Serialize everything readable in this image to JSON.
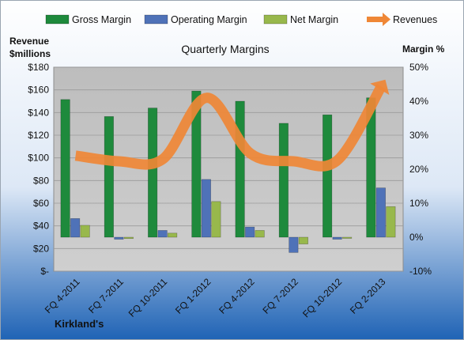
{
  "chart_data": {
    "type": "bar",
    "title": "Quarterly Margins",
    "company": "Kirkland's",
    "categories": [
      "FQ 4-2011",
      "FQ 7-2011",
      "FQ 10-2011",
      "FQ 1-2012",
      "FQ 4-2012",
      "FQ 7-2012",
      "FQ 10-2012",
      "FQ 2-2013"
    ],
    "left_axis": {
      "label_line1": "Revenue",
      "label_line2": "$millions",
      "ylim": [
        0,
        180
      ],
      "ticks": [
        0,
        20,
        40,
        60,
        80,
        100,
        120,
        140,
        160,
        180
      ],
      "tick_labels": [
        "$-",
        "$20",
        "$40",
        "$60",
        "$80",
        "$100",
        "$120",
        "$140",
        "$160",
        "$180"
      ]
    },
    "right_axis": {
      "label": "Margin %",
      "ylim": [
        -10,
        50
      ],
      "ticks": [
        -10,
        0,
        10,
        20,
        30,
        40,
        50
      ],
      "tick_labels": [
        "-10%",
        "0%",
        "10%",
        "20%",
        "30%",
        "40%",
        "50%"
      ]
    },
    "series": [
      {
        "name": "Gross Margin",
        "kind": "bar",
        "axis": "right",
        "color": "#1e8a3c",
        "values": [
          40.5,
          35.5,
          38,
          43,
          40,
          33.5,
          36,
          41
        ]
      },
      {
        "name": "Operating Margin",
        "kind": "bar",
        "axis": "right",
        "color": "#4f72b8",
        "values": [
          5.5,
          -0.6,
          2,
          17,
          3,
          -4.5,
          -0.6,
          14.5
        ]
      },
      {
        "name": "Net Margin",
        "kind": "bar",
        "axis": "right",
        "color": "#98b84c",
        "values": [
          3.5,
          -0.4,
          1.2,
          10.5,
          2,
          -2,
          -0.3,
          9
        ]
      },
      {
        "name": "Revenues",
        "kind": "line",
        "axis": "left",
        "color": "#ef8736",
        "values": [
          102,
          97,
          99,
          153,
          104,
          97,
          98,
          163
        ]
      }
    ],
    "grid": true,
    "legend_position": "top"
  }
}
